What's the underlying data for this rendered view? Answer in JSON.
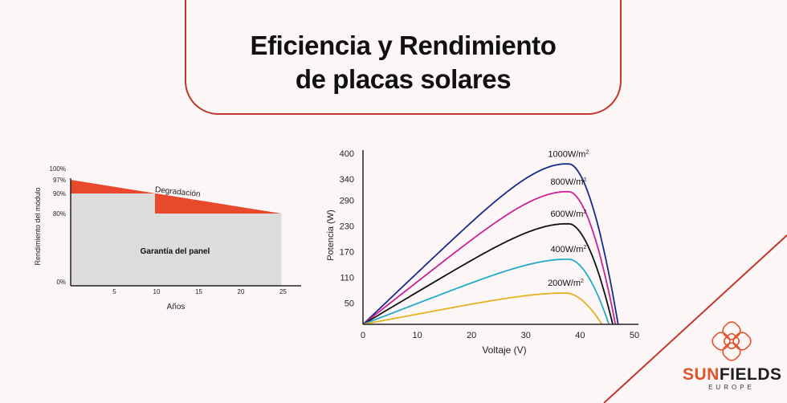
{
  "header": {
    "title_line1": "Eficiencia y Rendimiento",
    "title_line2": "de placas solares"
  },
  "colors": {
    "accent": "#c0392b",
    "degradation": "#e8492d",
    "warranty": "#dcdcdc"
  },
  "logo": {
    "icon": "flower-knot-icon",
    "brand_sun": "SUN",
    "brand_fields": "FIELDS",
    "sub": "EUROPE"
  },
  "chart_data": [
    {
      "type": "area",
      "title": "",
      "xlabel": "Años",
      "ylabel": "Rendimiento del módulo",
      "x_ticks": [
        "5",
        "10",
        "15",
        "20",
        "25"
      ],
      "y_ticks": [
        "100%",
        "97%",
        "90%",
        "80%",
        "0%"
      ],
      "xlim": [
        0,
        27
      ],
      "ylim": [
        0,
        100
      ],
      "series": [
        {
          "name": "Degradación",
          "x": [
            0,
            25
          ],
          "values": [
            97,
            80
          ]
        },
        {
          "name": "Garantía del panel",
          "x": [
            0,
            10,
            10,
            25
          ],
          "values": [
            90,
            90,
            80,
            80
          ]
        }
      ],
      "annotations": [
        "Degradación",
        "Garantía del panel"
      ]
    },
    {
      "type": "line",
      "title": "",
      "xlabel": "Voltaje (V)",
      "ylabel": "Potencia (W)",
      "xlim": [
        0,
        50
      ],
      "ylim": [
        0,
        400
      ],
      "x_ticks": [
        0,
        10,
        20,
        30,
        40,
        50
      ],
      "y_ticks": [
        50,
        110,
        170,
        230,
        290,
        340,
        400
      ],
      "series": [
        {
          "name": "1000W/m",
          "color": "#1a2a8c",
          "peak_v": 38,
          "peak_p": 375,
          "voc": 47
        },
        {
          "name": "800W/m",
          "color": "#cc2299",
          "peak_v": 38,
          "peak_p": 310,
          "voc": 46.5
        },
        {
          "name": "600W/m",
          "color": "#111111",
          "peak_v": 38,
          "peak_p": 235,
          "voc": 46
        },
        {
          "name": "400W/m",
          "color": "#22aacc",
          "peak_v": 38,
          "peak_p": 152,
          "voc": 45.3
        },
        {
          "name": "200W/m",
          "color": "#e6b020",
          "peak_v": 37.5,
          "peak_p": 73,
          "voc": 44
        }
      ]
    }
  ]
}
